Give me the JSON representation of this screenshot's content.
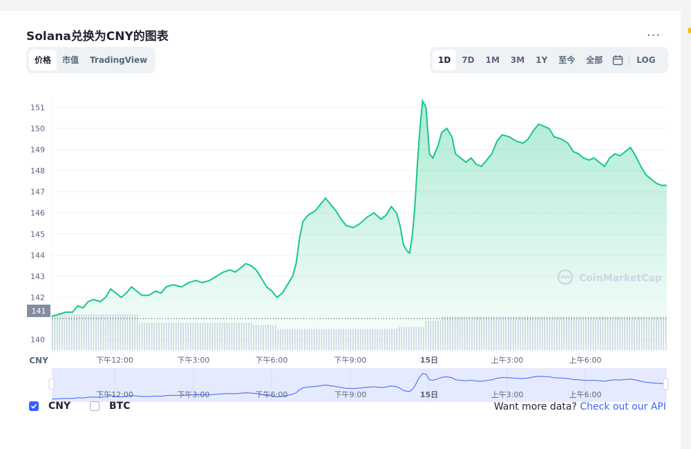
{
  "header": {
    "title": "Solana兑换为CNY的图表",
    "more_label": "..."
  },
  "chart_type_tabs": [
    {
      "label": "价格",
      "active": true
    },
    {
      "label": "市值",
      "active": false
    },
    {
      "label": "TradingView",
      "active": false
    }
  ],
  "range_tabs": [
    {
      "label": "1D",
      "active": true
    },
    {
      "label": "7D",
      "active": false
    },
    {
      "label": "1M",
      "active": false
    },
    {
      "label": "3M",
      "active": false
    },
    {
      "label": "1Y",
      "active": false
    },
    {
      "label": "至今",
      "active": false
    },
    {
      "label": "全部",
      "active": false
    }
  ],
  "log_label": "LOG",
  "axis_unit_label": "CNY",
  "current_price_tag": "141",
  "watermark": "CoinMarketCap",
  "legend": {
    "cny": {
      "label": "CNY",
      "checked": true
    },
    "btc": {
      "label": "BTC",
      "checked": false
    }
  },
  "footer": {
    "text": "Want more data?",
    "link": "Check out our API"
  },
  "colors": {
    "line": "#16c784",
    "accent": "#3861fb",
    "volume": "#cfd6e4",
    "navigator_fill": "#e6eafe"
  },
  "chart_data": {
    "type": "area",
    "y_ticks": [
      "151",
      "150",
      "149",
      "148",
      "147",
      "146",
      "145",
      "144",
      "143",
      "142",
      "140"
    ],
    "x_ticks": [
      "下午12:00",
      "下午3:00",
      "下午6:00",
      "下午9:00",
      "15日",
      "上午3:00",
      "上午6:00"
    ],
    "ylim": [
      139.5,
      151.5
    ],
    "grid": true,
    "price": [
      [
        0,
        141.1
      ],
      [
        8,
        141.2
      ],
      [
        16,
        141.3
      ],
      [
        24,
        141.3
      ],
      [
        30,
        141.6
      ],
      [
        36,
        141.5
      ],
      [
        42,
        141.8
      ],
      [
        48,
        141.9
      ],
      [
        56,
        141.8
      ],
      [
        62,
        142.0
      ],
      [
        68,
        142.4
      ],
      [
        74,
        142.2
      ],
      [
        80,
        142.0
      ],
      [
        86,
        142.2
      ],
      [
        92,
        142.5
      ],
      [
        98,
        142.3
      ],
      [
        104,
        142.1
      ],
      [
        112,
        142.1
      ],
      [
        120,
        142.3
      ],
      [
        126,
        142.2
      ],
      [
        132,
        142.5
      ],
      [
        140,
        142.6
      ],
      [
        150,
        142.5
      ],
      [
        158,
        142.7
      ],
      [
        166,
        142.8
      ],
      [
        174,
        142.7
      ],
      [
        182,
        142.8
      ],
      [
        190,
        143.0
      ],
      [
        198,
        143.2
      ],
      [
        206,
        143.3
      ],
      [
        212,
        143.2
      ],
      [
        218,
        143.4
      ],
      [
        224,
        143.6
      ],
      [
        230,
        143.5
      ],
      [
        236,
        143.3
      ],
      [
        242,
        142.9
      ],
      [
        248,
        142.5
      ],
      [
        254,
        142.3
      ],
      [
        260,
        142.0
      ],
      [
        266,
        142.2
      ],
      [
        272,
        142.6
      ],
      [
        278,
        143.0
      ],
      [
        282,
        143.6
      ],
      [
        286,
        144.8
      ],
      [
        290,
        145.6
      ],
      [
        296,
        145.9
      ],
      [
        304,
        146.1
      ],
      [
        310,
        146.4
      ],
      [
        316,
        146.7
      ],
      [
        322,
        146.4
      ],
      [
        328,
        146.1
      ],
      [
        334,
        145.7
      ],
      [
        340,
        145.4
      ],
      [
        348,
        145.3
      ],
      [
        356,
        145.5
      ],
      [
        364,
        145.8
      ],
      [
        372,
        146.0
      ],
      [
        380,
        145.7
      ],
      [
        386,
        145.9
      ],
      [
        392,
        146.3
      ],
      [
        398,
        146.0
      ],
      [
        402,
        145.4
      ],
      [
        406,
        144.5
      ],
      [
        410,
        144.2
      ],
      [
        413,
        144.1
      ],
      [
        416,
        144.9
      ],
      [
        419,
        146.2
      ],
      [
        422,
        148.3
      ],
      [
        425,
        150.0
      ],
      [
        428,
        151.3
      ],
      [
        432,
        151.0
      ],
      [
        436,
        148.8
      ],
      [
        440,
        148.6
      ],
      [
        446,
        149.2
      ],
      [
        450,
        149.8
      ],
      [
        456,
        150.0
      ],
      [
        462,
        149.6
      ],
      [
        466,
        148.8
      ],
      [
        472,
        148.6
      ],
      [
        478,
        148.4
      ],
      [
        484,
        148.6
      ],
      [
        490,
        148.3
      ],
      [
        496,
        148.2
      ],
      [
        502,
        148.5
      ],
      [
        508,
        148.8
      ],
      [
        514,
        149.4
      ],
      [
        520,
        149.7
      ],
      [
        528,
        149.6
      ],
      [
        536,
        149.4
      ],
      [
        544,
        149.3
      ],
      [
        550,
        149.5
      ],
      [
        556,
        149.9
      ],
      [
        562,
        150.2
      ],
      [
        568,
        150.1
      ],
      [
        574,
        150.0
      ],
      [
        580,
        149.6
      ],
      [
        588,
        149.5
      ],
      [
        596,
        149.3
      ],
      [
        602,
        148.9
      ],
      [
        608,
        148.8
      ],
      [
        614,
        148.6
      ],
      [
        620,
        148.5
      ],
      [
        626,
        148.6
      ],
      [
        632,
        148.4
      ],
      [
        638,
        148.2
      ],
      [
        644,
        148.6
      ],
      [
        650,
        148.8
      ],
      [
        656,
        148.7
      ],
      [
        662,
        148.9
      ],
      [
        668,
        149.1
      ],
      [
        674,
        148.7
      ],
      [
        680,
        148.2
      ],
      [
        686,
        147.8
      ],
      [
        692,
        147.6
      ],
      [
        698,
        147.4
      ],
      [
        704,
        147.3
      ],
      [
        710,
        147.3
      ]
    ],
    "volume": [
      [
        0,
        141.2
      ],
      [
        100,
        140.8
      ],
      [
        150,
        140.8
      ],
      [
        230,
        140.7
      ],
      [
        260,
        140.5
      ],
      [
        330,
        140.5
      ],
      [
        400,
        140.6
      ],
      [
        430,
        140.9
      ],
      [
        450,
        141.1
      ],
      [
        710,
        141.1
      ]
    ],
    "navigator_series": "price"
  }
}
